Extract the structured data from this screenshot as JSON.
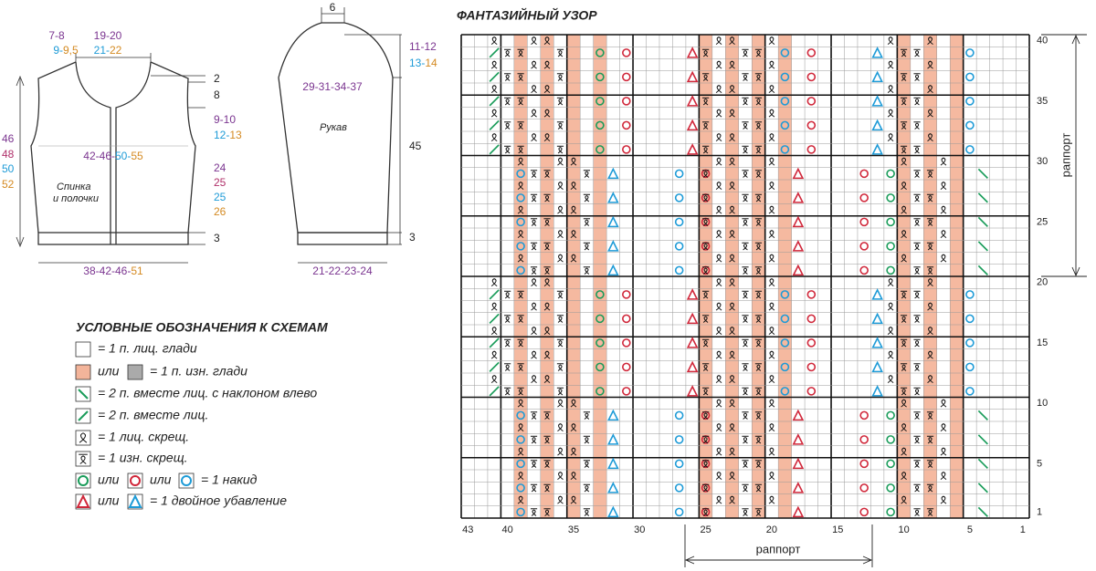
{
  "schematic": {
    "labels": [
      {
        "parts": [
          {
            "text": "7-8",
            "color": "#7b3590"
          }
        ]
      },
      {
        "parts": [
          {
            "text": "19-20",
            "color": "#7b3590"
          }
        ]
      },
      {
        "parts": [
          {
            "text": "9-",
            "color": "#1e9bd7"
          },
          {
            "text": "9,5",
            "color": "#d48a22"
          }
        ]
      },
      {
        "parts": [
          {
            "text": "21-",
            "color": "#1e9bd7"
          },
          {
            "text": "22",
            "color": "#d48a22"
          }
        ]
      },
      {
        "parts": [
          {
            "text": "2",
            "color": "#222222"
          }
        ]
      },
      {
        "parts": [
          {
            "text": "8",
            "color": "#222222"
          }
        ]
      },
      {
        "parts": [
          {
            "text": "9-10",
            "color": "#7b3590"
          }
        ]
      },
      {
        "parts": [
          {
            "text": "12-",
            "color": "#1e9bd7"
          },
          {
            "text": "13",
            "color": "#d48a22"
          }
        ]
      },
      {
        "parts": [
          {
            "text": "46",
            "color": "#7b3590"
          }
        ]
      },
      {
        "parts": [
          {
            "text": "48",
            "color": "#b0306a"
          }
        ]
      },
      {
        "parts": [
          {
            "text": "50",
            "color": "#1e9bd7"
          }
        ]
      },
      {
        "parts": [
          {
            "text": "52",
            "color": "#d48a22"
          }
        ]
      },
      {
        "parts": [
          {
            "text": "42-46-",
            "color": "#7b3590"
          },
          {
            "text": "50-",
            "color": "#1e9bd7"
          },
          {
            "text": "55",
            "color": "#d48a22"
          }
        ]
      },
      {
        "parts": [
          {
            "text": "24",
            "color": "#7b3590"
          }
        ]
      },
      {
        "parts": [
          {
            "text": "25",
            "color": "#b0306a"
          }
        ]
      },
      {
        "parts": [
          {
            "text": "25",
            "color": "#1e9bd7"
          }
        ]
      },
      {
        "parts": [
          {
            "text": "26",
            "color": "#d48a22"
          }
        ]
      },
      {
        "parts": [
          {
            "text": "3",
            "color": "#222222"
          }
        ]
      },
      {
        "parts": [
          {
            "text": "38-42-46-",
            "color": "#7b3590"
          },
          {
            "text": "51",
            "color": "#d48a22"
          }
        ]
      },
      {
        "parts": [
          {
            "text": "6",
            "color": "#222222"
          }
        ]
      },
      {
        "parts": [
          {
            "text": "11-12",
            "color": "#7b3590"
          }
        ]
      },
      {
        "parts": [
          {
            "text": "13-",
            "color": "#1e9bd7"
          },
          {
            "text": "14",
            "color": "#d48a22"
          }
        ]
      },
      {
        "parts": [
          {
            "text": "29-31-34-37",
            "color": "#7b3590"
          }
        ]
      },
      {
        "parts": [
          {
            "text": "45",
            "color": "#222222"
          }
        ]
      },
      {
        "parts": [
          {
            "text": "3",
            "color": "#222222"
          }
        ]
      },
      {
        "parts": [
          {
            "text": "21-22-23-24",
            "color": "#7b3590"
          }
        ]
      }
    ],
    "body_caption": [
      "Спинка",
      "и полочки"
    ],
    "sleeve_caption": "Рукав"
  },
  "legend": {
    "title": "УСЛОВНЫЕ ОБОЗНАЧЕНИЯ К СХЕМАМ",
    "items": [
      {
        "texts": [
          "= 1 п. лиц. глади"
        ]
      },
      {
        "texts": [
          "или",
          "= 1 п. изн. глади"
        ]
      },
      {
        "texts": [
          "= 2 п. вместе лиц. с наклоном влево"
        ]
      },
      {
        "texts": [
          "= 2 п. вместе лиц."
        ]
      },
      {
        "texts": [
          "= 1 лиц. скрещ."
        ]
      },
      {
        "texts": [
          "= 1 изн. скрещ."
        ]
      },
      {
        "texts": [
          "или",
          "или",
          "= 1 накид"
        ]
      },
      {
        "texts": [
          "или",
          "= 1 двойное убавление"
        ]
      }
    ]
  },
  "chart": {
    "title": "ФАНТАЗИЙНЫЙ УЗОР",
    "column_labels": [
      43,
      40,
      35,
      30,
      25,
      20,
      15,
      10,
      5,
      1
    ],
    "row_labels": [
      1,
      5,
      10,
      15,
      20,
      25,
      30,
      35,
      40
    ],
    "repeat_vertical": "раппорт",
    "repeat_horizontal": "раппорт"
  }
}
